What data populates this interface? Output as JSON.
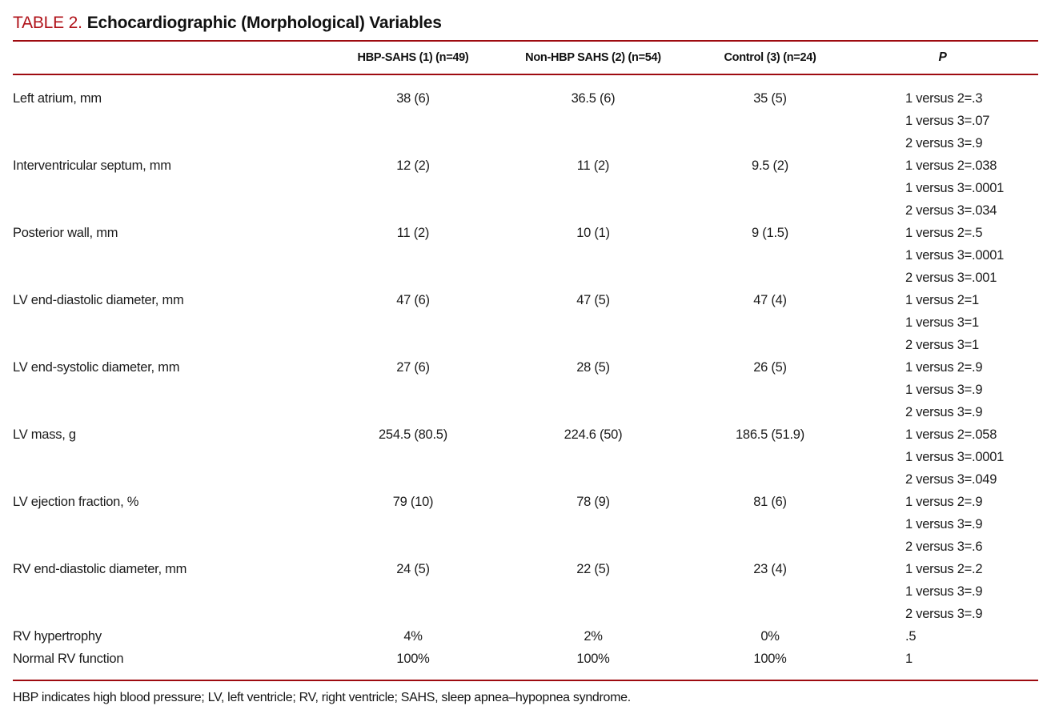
{
  "title": {
    "label": "TABLE 2.",
    "text": "Echocardiographic (Morphological) Variables"
  },
  "table": {
    "columns": [
      "",
      "HBP-SAHS (1) (n=49)",
      "Non-HBP SAHS (2) (n=54)",
      "Control (3) (n=24)",
      "P"
    ],
    "rows": [
      {
        "label": "Left atrium, mm",
        "values": [
          "38 (6)",
          "36.5 (6)",
          "35 (5)"
        ],
        "p": [
          "1 versus 2=.3",
          "1 versus 3=.07",
          "2 versus 3=.9"
        ]
      },
      {
        "label": "Interventricular septum, mm",
        "values": [
          "12 (2)",
          "11 (2)",
          "9.5 (2)"
        ],
        "p": [
          "1 versus 2=.038",
          "1 versus 3=.0001",
          "2 versus 3=.034"
        ]
      },
      {
        "label": "Posterior wall, mm",
        "values": [
          "11 (2)",
          "10 (1)",
          "9 (1.5)"
        ],
        "p": [
          "1 versus 2=.5",
          "1 versus 3=.0001",
          "2 versus 3=.001"
        ]
      },
      {
        "label": "LV end-diastolic diameter, mm",
        "values": [
          "47 (6)",
          "47 (5)",
          "47 (4)"
        ],
        "p": [
          "1 versus 2=1",
          "1 versus 3=1",
          "2 versus 3=1"
        ]
      },
      {
        "label": "LV end-systolic diameter, mm",
        "values": [
          "27 (6)",
          "28 (5)",
          "26 (5)"
        ],
        "p": [
          "1 versus 2=.9",
          "1 versus 3=.9",
          "2 versus 3=.9"
        ]
      },
      {
        "label": "LV mass, g",
        "values": [
          "254.5 (80.5)",
          "224.6 (50)",
          "186.5 (51.9)"
        ],
        "p": [
          "1 versus 2=.058",
          "1 versus 3=.0001",
          "2 versus 3=.049"
        ]
      },
      {
        "label": "LV ejection fraction, %",
        "values": [
          "79 (10)",
          "78 (9)",
          "81 (6)"
        ],
        "p": [
          "1 versus 2=.9",
          "1 versus 3=.9",
          "2 versus 3=.6"
        ]
      },
      {
        "label": "RV end-diastolic diameter, mm",
        "values": [
          "24 (5)",
          "22 (5)",
          "23 (4)"
        ],
        "p": [
          "1 versus 2=.2",
          "1 versus 3=.9",
          "2 versus 3=.9"
        ]
      },
      {
        "label": "RV hypertrophy",
        "values": [
          "4%",
          "2%",
          "0%"
        ],
        "p": [
          ".5"
        ]
      },
      {
        "label": "Normal RV function",
        "values": [
          "100%",
          "100%",
          "100%"
        ],
        "p": [
          "1"
        ]
      }
    ]
  },
  "footnote": "HBP indicates high blood pressure; LV, left ventricle; RV, right ventricle; SAHS, sleep apnea–hypopnea syndrome.",
  "colors": {
    "title_red": "#b01219",
    "rule_red": "#9e0b10",
    "text": "#1b1b1b"
  }
}
